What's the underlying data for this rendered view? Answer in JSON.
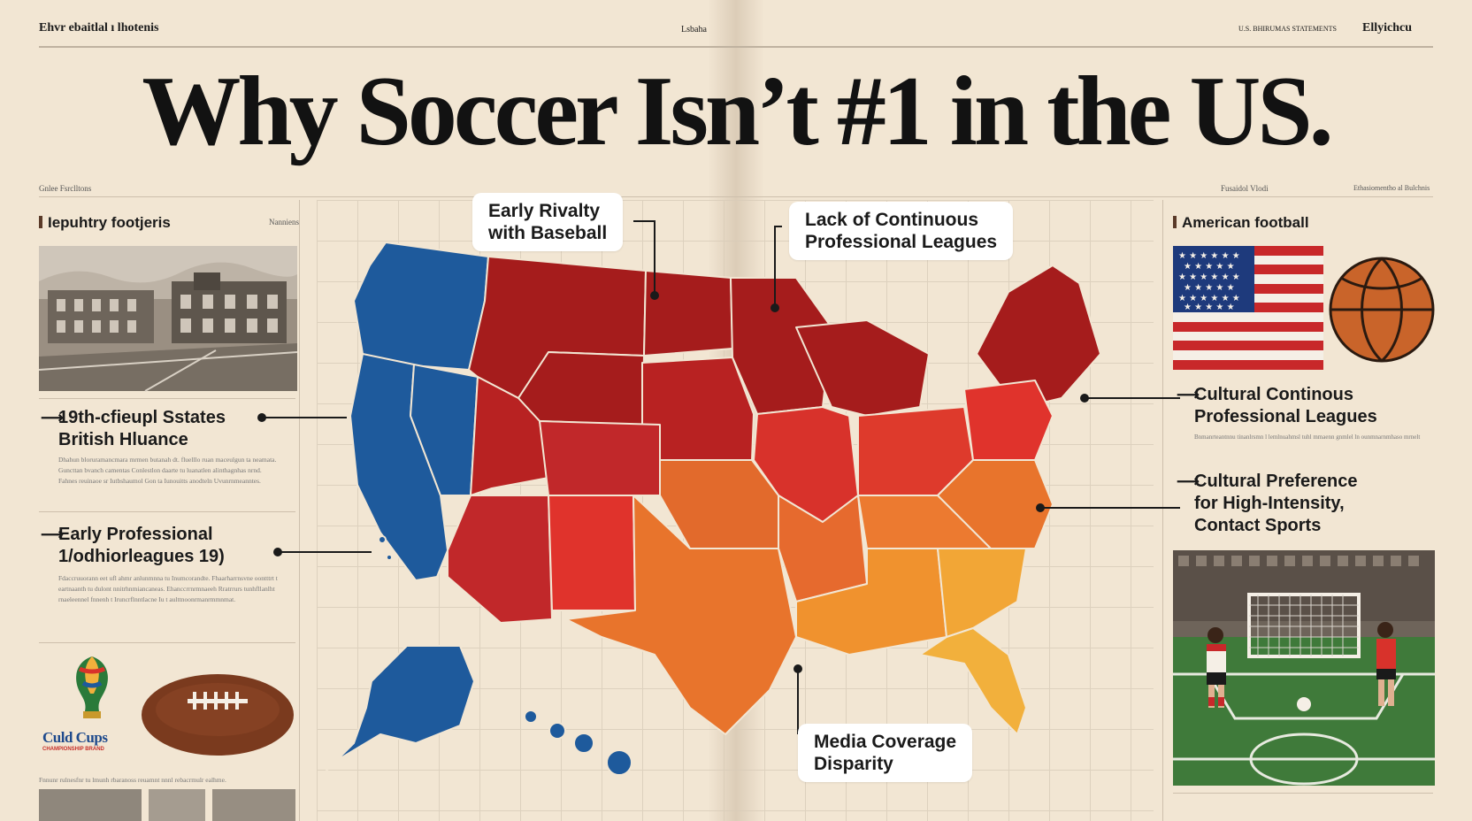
{
  "masthead": {
    "left": "Ehvr ebaitlal ı lhotenis",
    "center": "Lsbaha",
    "right_small": "U.S. BHIRUMAS STATEMENTS",
    "right": "Ellyichcu"
  },
  "title": "Why Soccer Isn’t #1 in the US.",
  "section_labels": {
    "left": "Gnlee Fsrclltons",
    "right_a": "Fusaidol Vlodi",
    "right_b": "Ethasiomentho al Bulchnis"
  },
  "left_column": {
    "heading": "Iepuhtry footjeris",
    "heading_tag": "Nanniens",
    "reasons": [
      {
        "line1": "19th-cfieupl Sstates",
        "line2": "British Hluance"
      },
      {
        "line1": "Early Professional",
        "line2": "1/odhiorleagues 19)"
      }
    ],
    "body_text": [
      "Dhahun bloruramancmara mrmen butanah dt. fluelllo ruan maceulgun ta neamata. Guncttan bvanch camentas Conlestlon daarte tu luanatlen alinthagnhas nrnd. Fahnes reuinaoe sr Iutbshaumol Gon ta Iunouitts anodteln Uvunrnmeanntes.",
      "Fdaccruuorann eet ufl ahmr anlunmnna tu Inumcorandte. Fhaarharrnsvne oontttrt t eartnaanth tu dulont nnitrhnmiancaneas. Ehanccrrnrmnaeeh Rratrrurs tunhfllanlht rnaeleennel fnnenh t Iruncrflnntlacne Iu t aulttnoonrmanrmmnmat."
    ],
    "logo_text": "Culd Cups",
    "logo_sub": "CHAMPIONSHIP BRAND",
    "bottom_caption": "Fnnunr rulnesfnr tu lmunh rbaranoss reuamnt nnnl rebacrmulr ealhme."
  },
  "right_column": {
    "heading": "American football",
    "reasons": [
      {
        "line1": "Cultural Continous",
        "line2": "Professional Leagues"
      },
      {
        "line1": "Cultural Preference",
        "line2": "for High-Intensity,",
        "line3": "Contact Sports"
      }
    ],
    "body_text": "Bnmanrteantnnu tinanlrsmn l lemlnuahmsl tuhl mmaenn gnmlel ln ounmnarnmhaso mrnelt"
  },
  "callouts": {
    "baseball": {
      "line1": "Early Rivalty",
      "line2": "with Baseball"
    },
    "leagues": {
      "line1": "Lack of Continuous",
      "line2": "Professional Leagues"
    },
    "media": {
      "line1": "Media Coverage",
      "line2": "Disparity"
    }
  },
  "colors": {
    "background": "#f2e6d3",
    "west_blue": "#1e5a9c",
    "north_red": "#a51c1c",
    "mid_red": "#d8322b",
    "orange": "#e8742c",
    "yellow": "#f2b03c"
  },
  "icons": {
    "flag": "us-flag-icon",
    "basketball": "basketball-icon",
    "football": "american-football-icon",
    "trophy": "world-cup-trophy-icon"
  }
}
